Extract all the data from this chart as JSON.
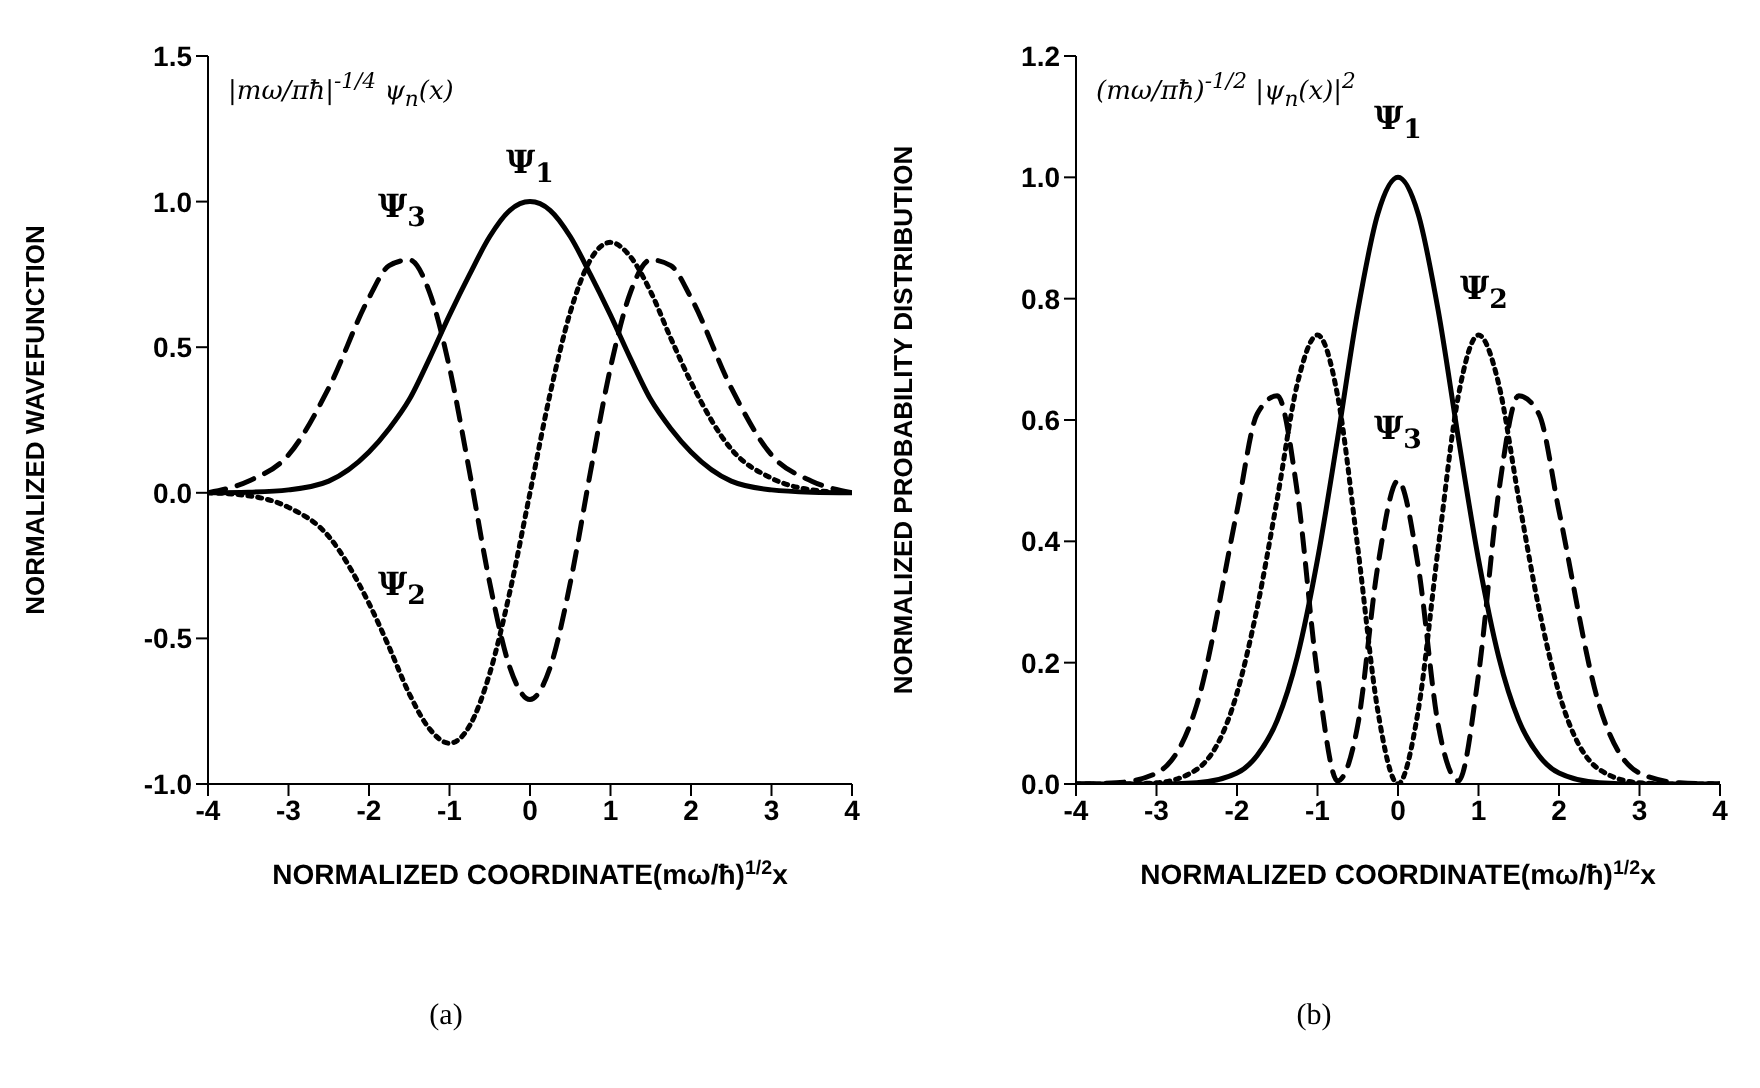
{
  "chart_data": [
    {
      "type": "line",
      "ylabel": "NORMALIZED WAVEFUNCTION",
      "xlabel": "NORMALIZED COORDINATE(mω/ħ)$^{1/2}$x",
      "x": [
        -4,
        -3.5,
        -3,
        -2.5,
        -2,
        -1.75,
        -1.5,
        -1.25,
        -1,
        -0.75,
        -0.5,
        -0.25,
        0,
        0.25,
        0.5,
        0.75,
        1,
        1.25,
        1.5,
        1.75,
        2,
        2.5,
        3,
        3.5,
        4
      ],
      "series": [
        {
          "color": "#000000",
          "line_style": "solid",
          "values": [
            0,
            0.002,
            0.01,
            0.04,
            0.14,
            0.22,
            0.32,
            0.46,
            0.61,
            0.75,
            0.88,
            0.97,
            1.0,
            0.97,
            0.88,
            0.75,
            0.61,
            0.46,
            0.32,
            0.22,
            0.14,
            0.04,
            0.01,
            0.002,
            0
          ]
        },
        {
          "color": "#000000",
          "line_style": "dotted",
          "values": [
            0,
            -0.01,
            -0.05,
            -0.15,
            -0.38,
            -0.53,
            -0.69,
            -0.81,
            -0.86,
            -0.8,
            -0.62,
            -0.34,
            0,
            0.34,
            0.62,
            0.8,
            0.86,
            0.81,
            0.69,
            0.53,
            0.38,
            0.15,
            0.05,
            0.01,
            0
          ]
        },
        {
          "color": "#000000",
          "line_style": "dashed",
          "values": [
            0,
            0.04,
            0.13,
            0.36,
            0.67,
            0.78,
            0.8,
            0.69,
            0.43,
            0.07,
            -0.31,
            -0.6,
            -0.71,
            -0.6,
            -0.31,
            0.07,
            0.43,
            0.69,
            0.8,
            0.78,
            0.67,
            0.36,
            0.13,
            0.04,
            0
          ]
        }
      ],
      "xlim": [
        -4,
        4
      ],
      "xticks": [
        -4,
        -3,
        -2,
        -1,
        0,
        1,
        2,
        3,
        4
      ],
      "ylim": [
        -1,
        1.5
      ],
      "yticks": [
        {
          "value": -1,
          "label": "-1.0"
        },
        -0.5,
        {
          "value": 0,
          "label": "0.0"
        },
        0.5,
        {
          "value": 1,
          "label": "1.0"
        },
        1.5
      ],
      "grid": false,
      "marker": "none",
      "annotations": [
        "|mω/πħ|$^{-1/4}$ ψ$_{n}$(x)",
        "Ψ$_{1}$",
        "Ψ$_{3}$",
        "Ψ$_{2}$",
        "(a)"
      ]
    },
    {
      "type": "line",
      "ylabel": "NORMALIZED PROBABILITY DISTRIBUTION",
      "xlabel": "NORMALIZED COORDINATE(mω/ħ)$^{1/2}$x",
      "x": [
        -4,
        -3.5,
        -3,
        -2.5,
        -2,
        -1.75,
        -1.5,
        -1.25,
        -1,
        -0.75,
        -0.5,
        -0.25,
        0,
        0.25,
        0.5,
        0.75,
        1,
        1.25,
        1.5,
        1.75,
        2,
        2.5,
        3,
        3.5,
        4
      ],
      "series": [
        {
          "color": "#000000",
          "line_style": "solid",
          "values": [
            0,
            0,
            0,
            0.002,
            0.018,
            0.047,
            0.105,
            0.21,
            0.37,
            0.57,
            0.78,
            0.94,
            1.0,
            0.94,
            0.78,
            0.57,
            0.37,
            0.21,
            0.105,
            0.047,
            0.018,
            0.002,
            0,
            0,
            0
          ]
        },
        {
          "color": "#000000",
          "line_style": "dotted",
          "values": [
            0,
            0,
            0.002,
            0.024,
            0.15,
            0.29,
            0.47,
            0.66,
            0.74,
            0.64,
            0.39,
            0.12,
            0,
            0.12,
            0.39,
            0.64,
            0.74,
            0.66,
            0.47,
            0.29,
            0.15,
            0.024,
            0.002,
            0,
            0
          ]
        },
        {
          "color": "#000000",
          "line_style": "dashed",
          "values": [
            0,
            0.002,
            0.018,
            0.13,
            0.45,
            0.61,
            0.64,
            0.48,
            0.18,
            0.005,
            0.097,
            0.36,
            0.5,
            0.36,
            0.097,
            0.005,
            0.18,
            0.48,
            0.64,
            0.61,
            0.45,
            0.13,
            0.018,
            0.002,
            0
          ]
        }
      ],
      "xlim": [
        -4,
        4
      ],
      "xticks": [
        -4,
        -3,
        -2,
        -1,
        0,
        1,
        2,
        3,
        4
      ],
      "ylim": [
        0,
        1.2
      ],
      "yticks": [
        {
          "value": 0,
          "label": "0.0"
        },
        0.2,
        0.4,
        0.6,
        0.8,
        {
          "value": 1,
          "label": "1.0"
        },
        1.2
      ],
      "grid": false,
      "marker": "none",
      "annotations": [
        "(mω/πħ)$^{-1/2}$ |ψ$_{n}$(x)|$^{2}$",
        "Ψ$_{1}$",
        "Ψ$_{2}$",
        "Ψ$_{3}$",
        "(b)"
      ]
    }
  ]
}
